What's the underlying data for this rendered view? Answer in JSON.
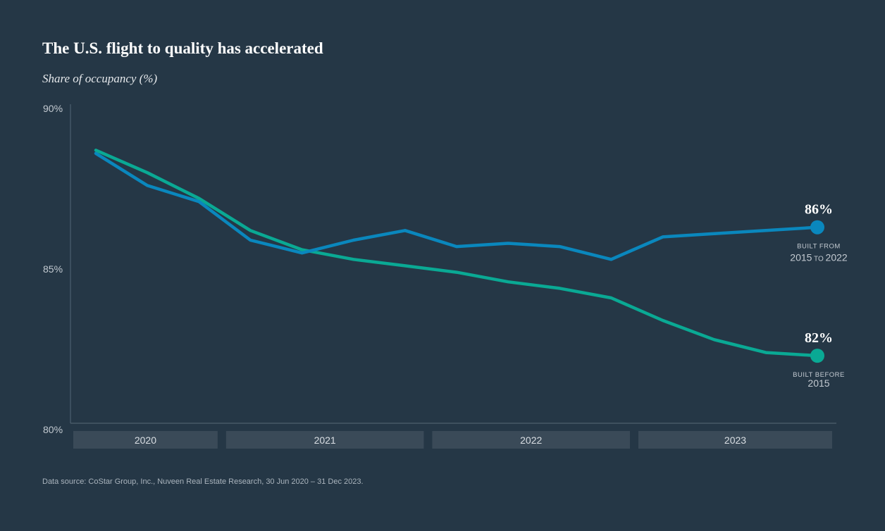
{
  "chart_data": {
    "type": "line",
    "title": "The U.S. flight to quality has accelerated",
    "subtitle": "Share of occupancy (%)",
    "ylim": [
      80,
      90
    ],
    "yticks": [
      {
        "value": 90,
        "label": "90%"
      },
      {
        "value": 85,
        "label": "85%"
      },
      {
        "value": 80,
        "label": "80%"
      }
    ],
    "x": [
      0,
      1,
      2,
      3,
      4,
      5,
      6,
      7,
      8,
      9,
      10,
      11,
      12,
      13,
      14
    ],
    "year_bands": [
      {
        "label": "2020",
        "start": 0,
        "end": 2.5
      },
      {
        "label": "2021",
        "start": 2.5,
        "end": 6.5
      },
      {
        "label": "2022",
        "start": 6.5,
        "end": 10.5
      },
      {
        "label": "2023",
        "start": 10.5,
        "end": 14.5
      }
    ],
    "series": [
      {
        "name": "Built from 2015 to 2022",
        "color": "#0a87bd",
        "values": [
          88.6,
          87.6,
          87.1,
          85.9,
          85.5,
          85.9,
          86.2,
          85.7,
          85.8,
          85.7,
          85.3,
          86.0,
          86.1,
          86.2,
          86.3
        ],
        "end_label": "86%",
        "label_line1": "BUILT FROM",
        "label_line2a": "2015",
        "label_line2b": "to",
        "label_line2c": "2022"
      },
      {
        "name": "Built before 2015",
        "color": "#0aa994",
        "values": [
          88.7,
          88.0,
          87.2,
          86.2,
          85.6,
          85.3,
          85.1,
          84.9,
          84.6,
          84.4,
          84.1,
          83.4,
          82.8,
          82.4,
          82.3
        ],
        "end_label": "82%",
        "label_line1": "BUILT BEFORE",
        "label_line2a": "2015"
      }
    ]
  },
  "source": "Data source: CoStar Group, Inc., Nuveen Real Estate Research, 30 Jun 2020 – 31 Dec 2023."
}
